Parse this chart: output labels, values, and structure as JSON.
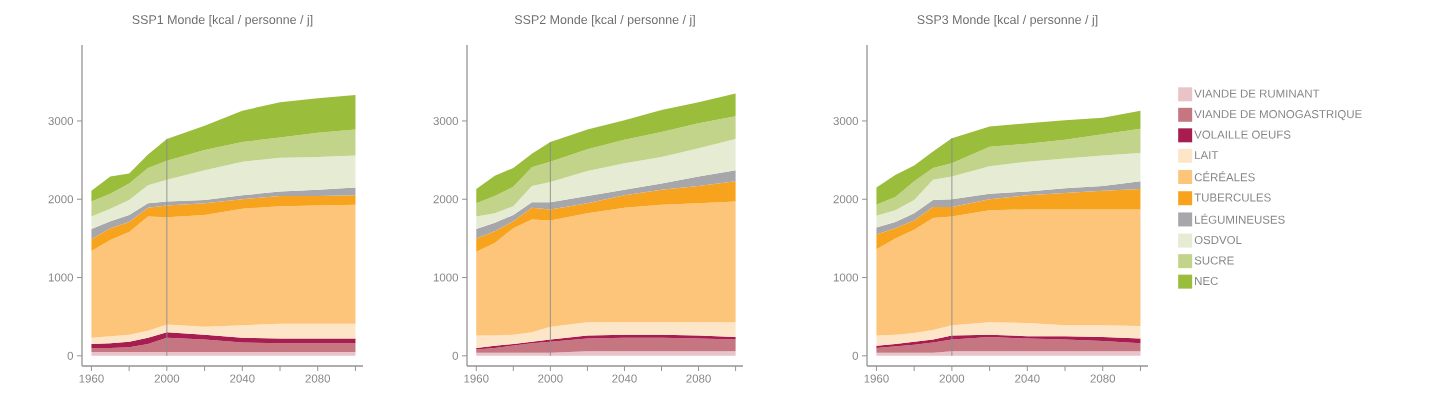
{
  "chart_data": [
    {
      "type": "area",
      "stacked": true,
      "title": "SSP1 Monde [kcal / personne / j]",
      "x": [
        1960,
        1970,
        1980,
        1990,
        2000,
        2020,
        2040,
        2060,
        2080,
        2100
      ],
      "xlim": [
        1955,
        2104
      ],
      "ylim": [
        -130,
        3970
      ],
      "xticks": [
        1960,
        {
          "value": 1980,
          "label": null
        },
        2000,
        {
          "value": 2020,
          "label": null
        },
        2040,
        {
          "value": 2060,
          "label": null
        },
        2080,
        {
          "value": 2100,
          "label": null
        }
      ],
      "yticks": [
        0,
        1000,
        2000,
        3000
      ],
      "ref_lines": [
        {
          "axis": "x",
          "value": 2000,
          "color": "#8c8c8c"
        }
      ],
      "series": [
        {
          "color": "#e8c4c8",
          "values": [
            50,
            50,
            50,
            50,
            50,
            50,
            50,
            50,
            50,
            50
          ]
        },
        {
          "color": "#c57680",
          "values": [
            50,
            50,
            60,
            100,
            180,
            160,
            120,
            110,
            110,
            110
          ]
        },
        {
          "color": "#a81d4f",
          "values": [
            50,
            60,
            70,
            80,
            70,
            60,
            60,
            60,
            60,
            60
          ]
        },
        {
          "color": "#fde6c8",
          "values": [
            80,
            90,
            90,
            90,
            100,
            100,
            160,
            190,
            190,
            190
          ]
        },
        {
          "color": "#fcc579",
          "values": [
            1110,
            1230,
            1310,
            1460,
            1370,
            1430,
            1490,
            1500,
            1510,
            1520
          ]
        },
        {
          "color": "#f8a31d",
          "values": [
            150,
            150,
            130,
            110,
            150,
            150,
            120,
            130,
            120,
            120
          ]
        },
        {
          "color": "#a7a7ab",
          "values": [
            130,
            90,
            90,
            60,
            50,
            40,
            50,
            60,
            80,
            100
          ]
        },
        {
          "color": "#e6ecd4",
          "values": [
            160,
            160,
            190,
            230,
            280,
            380,
            430,
            430,
            420,
            410
          ]
        },
        {
          "color": "#c2d38a",
          "values": [
            190,
            190,
            210,
            220,
            240,
            260,
            250,
            260,
            310,
            330
          ]
        },
        {
          "color": "#9bbd3c",
          "values": [
            140,
            220,
            130,
            170,
            280,
            310,
            400,
            450,
            440,
            440
          ]
        }
      ]
    },
    {
      "type": "area",
      "stacked": true,
      "title": "SSP2 Monde [kcal / personne / j]",
      "x": [
        1960,
        1970,
        1980,
        1990,
        2000,
        2020,
        2040,
        2060,
        2080,
        2100
      ],
      "xlim": [
        1955,
        2104
      ],
      "ylim": [
        -130,
        3970
      ],
      "xticks": [
        1960,
        {
          "value": 1980,
          "label": null
        },
        2000,
        {
          "value": 2020,
          "label": null
        },
        2040,
        {
          "value": 2060,
          "label": null
        },
        2080,
        {
          "value": 2100,
          "label": null
        }
      ],
      "yticks": [
        0,
        1000,
        2000,
        3000
      ],
      "ref_lines": [
        {
          "axis": "x",
          "value": 2000,
          "color": "#8c8c8c"
        }
      ],
      "series": [
        {
          "color": "#e8c4c8",
          "values": [
            40,
            40,
            40,
            40,
            40,
            60,
            60,
            60,
            60,
            60
          ]
        },
        {
          "color": "#c57680",
          "values": [
            40,
            60,
            90,
            120,
            140,
            160,
            170,
            170,
            160,
            150
          ]
        },
        {
          "color": "#a81d4f",
          "values": [
            20,
            30,
            20,
            20,
            30,
            40,
            40,
            40,
            40,
            30
          ]
        },
        {
          "color": "#fde6c8",
          "values": [
            160,
            130,
            120,
            120,
            160,
            170,
            160,
            160,
            170,
            190
          ]
        },
        {
          "color": "#fcc579",
          "values": [
            1070,
            1180,
            1360,
            1440,
            1360,
            1390,
            1460,
            1500,
            1520,
            1540
          ]
        },
        {
          "color": "#f8a31d",
          "values": [
            170,
            150,
            90,
            150,
            140,
            130,
            160,
            190,
            220,
            260
          ]
        },
        {
          "color": "#a7a7ab",
          "values": [
            120,
            110,
            80,
            70,
            90,
            90,
            70,
            80,
            120,
            140
          ]
        },
        {
          "color": "#e6ecd4",
          "values": [
            160,
            120,
            110,
            210,
            260,
            320,
            340,
            340,
            360,
            400
          ]
        },
        {
          "color": "#c2d38a",
          "values": [
            170,
            220,
            250,
            240,
            260,
            280,
            300,
            320,
            320,
            290
          ]
        },
        {
          "color": "#9bbd3c",
          "values": [
            180,
            260,
            240,
            170,
            250,
            250,
            250,
            280,
            270,
            290
          ]
        }
      ]
    },
    {
      "type": "area",
      "stacked": true,
      "title": "SSP3 Monde [kcal / personne / j]",
      "x": [
        1960,
        1970,
        1980,
        1990,
        2000,
        2020,
        2040,
        2060,
        2080,
        2100
      ],
      "xlim": [
        1955,
        2104
      ],
      "ylim": [
        -130,
        3970
      ],
      "xticks": [
        1960,
        {
          "value": 1980,
          "label": null
        },
        2000,
        {
          "value": 2020,
          "label": null
        },
        2040,
        {
          "value": 2060,
          "label": null
        },
        2080,
        {
          "value": 2100,
          "label": null
        }
      ],
      "yticks": [
        0,
        1000,
        2000,
        3000
      ],
      "ref_lines": [
        {
          "axis": "x",
          "value": 2000,
          "color": "#8c8c8c"
        }
      ],
      "legend": "right",
      "series": [
        {
          "name": "VIANDE DE RUMINANT",
          "color": "#e8c4c8",
          "values": [
            40,
            40,
            40,
            40,
            60,
            60,
            60,
            60,
            60,
            60
          ]
        },
        {
          "name": "VIANDE DE MONOGASTRIQUE",
          "color": "#c57680",
          "values": [
            60,
            80,
            100,
            130,
            150,
            180,
            160,
            150,
            130,
            100
          ]
        },
        {
          "name": "VOLAILLE OEUFS",
          "color": "#a81d4f",
          "values": [
            30,
            30,
            40,
            40,
            50,
            30,
            30,
            40,
            50,
            60
          ]
        },
        {
          "name": "LAIT",
          "color": "#fde6c8",
          "values": [
            130,
            120,
            110,
            120,
            130,
            160,
            170,
            140,
            150,
            160
          ]
        },
        {
          "name": "CÉRÉALES",
          "color": "#fcc579",
          "values": [
            1100,
            1230,
            1320,
            1430,
            1390,
            1430,
            1450,
            1480,
            1480,
            1490
          ]
        },
        {
          "name": "TUBERCULES",
          "color": "#f8a31d",
          "values": [
            190,
            130,
            120,
            140,
            120,
            140,
            180,
            210,
            240,
            260
          ]
        },
        {
          "name": "LÉGUMINEUSES",
          "color": "#a7a7ab",
          "values": [
            90,
            80,
            90,
            90,
            100,
            70,
            50,
            60,
            60,
            100
          ]
        },
        {
          "name": "OSDVOL",
          "color": "#e6ecd4",
          "values": [
            150,
            150,
            170,
            260,
            290,
            350,
            380,
            380,
            390,
            360
          ]
        },
        {
          "name": "SUCRE",
          "color": "#c2d38a",
          "values": [
            140,
            170,
            240,
            150,
            170,
            250,
            230,
            240,
            270,
            310
          ]
        },
        {
          "name": "NEC",
          "color": "#9bbd3c",
          "values": [
            220,
            280,
            200,
            210,
            320,
            260,
            260,
            250,
            210,
            230
          ]
        }
      ]
    }
  ]
}
